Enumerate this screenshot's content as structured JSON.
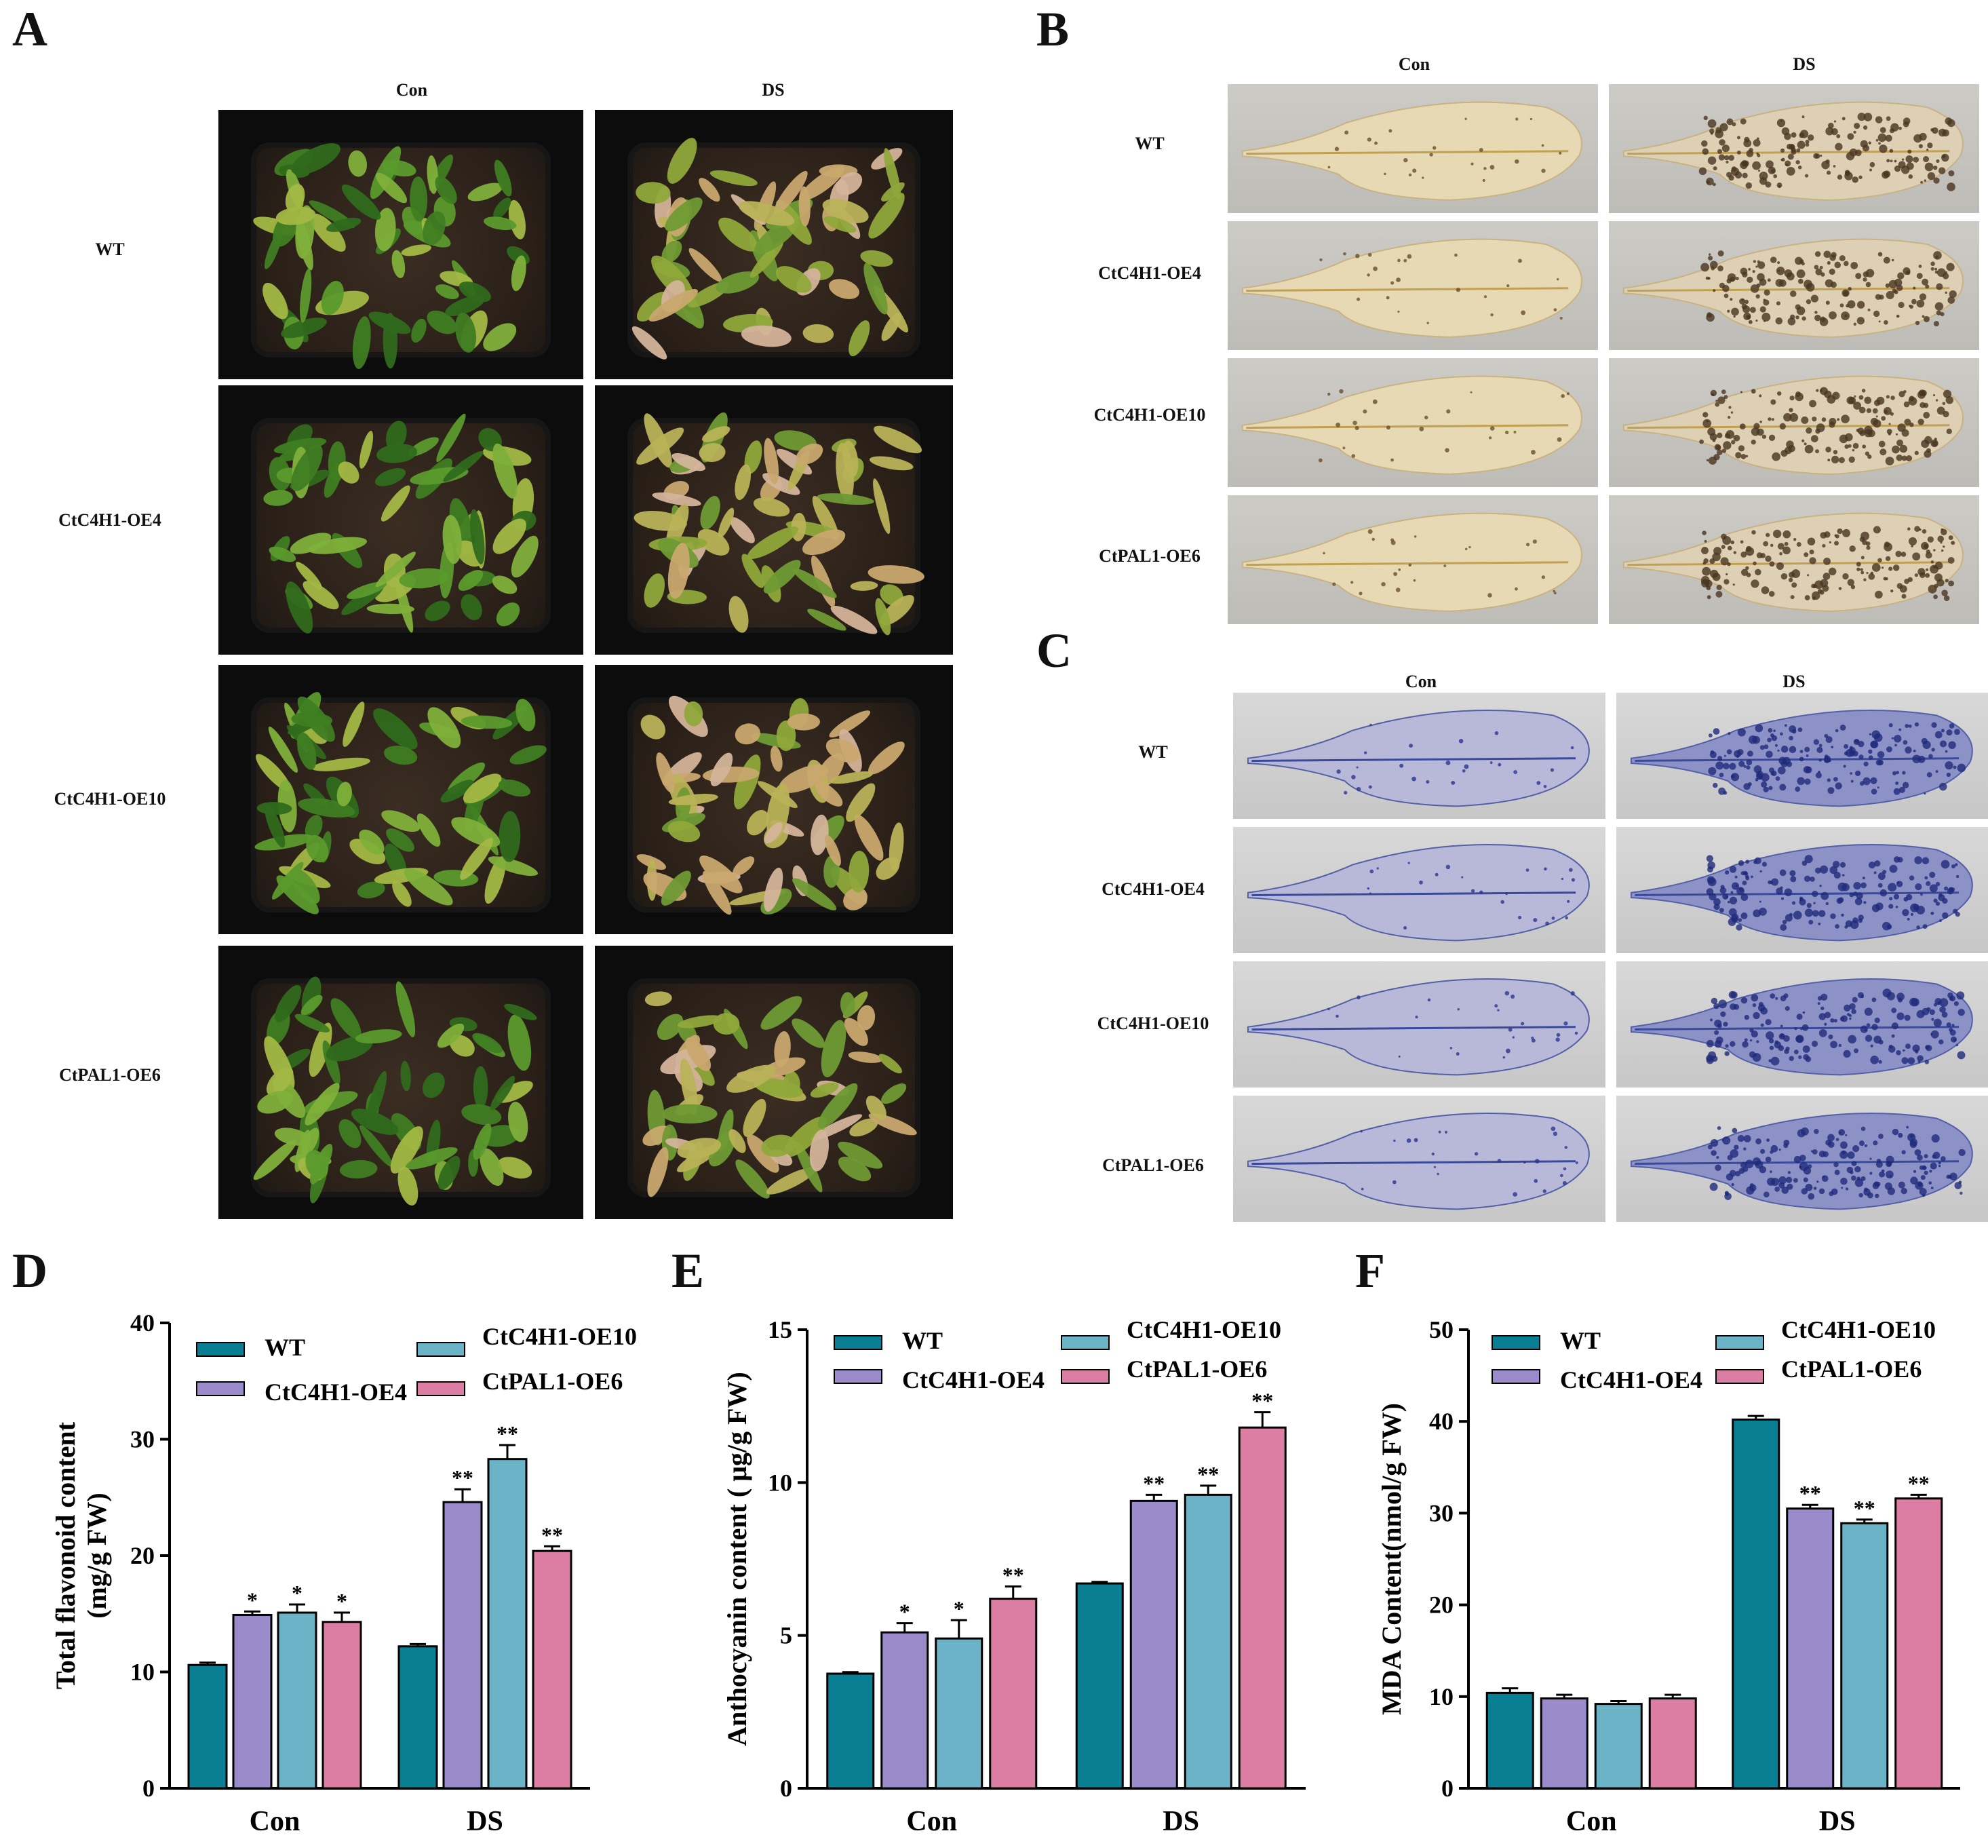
{
  "figure": {
    "panels": {
      "A": {
        "letter": "A",
        "columns": [
          "Con",
          "DS"
        ],
        "rows": [
          "WT",
          "CtC4H1-OE4",
          "CtC4H1-OE10",
          "CtPAL1-OE6"
        ]
      },
      "B": {
        "letter": "B",
        "columns": [
          "Con",
          "DS"
        ],
        "rows": [
          "WT",
          "CtC4H1-OE4",
          "CtC4H1-OE10",
          "CtPAL1-OE6"
        ]
      },
      "C": {
        "letter": "C",
        "columns": [
          "Con",
          "DS"
        ],
        "rows": [
          "WT",
          "CtC4H1-OE4",
          "CtC4H1-OE10",
          "CtPAL1-OE6"
        ]
      }
    },
    "colors": {
      "WT": "#0a7e93",
      "CtC4H1-OE4": "#9b8bcb",
      "CtC4H1-OE10": "#6bb3c6",
      "CtPAL1-OE6": "#dc7ea4",
      "nbt_stain": "#2a3590",
      "dab_stain": "#7a5a3c"
    }
  },
  "chart_data": [
    {
      "panel": "D",
      "type": "bar",
      "ylabel_line1": "Total flavonoid content",
      "ylabel_line2": "(mg/g FW)",
      "categories": [
        "Con",
        "DS"
      ],
      "ylim": [
        0,
        40
      ],
      "yticks": [
        0,
        10,
        20,
        30,
        40
      ],
      "series": [
        {
          "name": "WT",
          "values": [
            10.6,
            12.2
          ],
          "errors": [
            0.2,
            0.2
          ],
          "sig": [
            "",
            ""
          ]
        },
        {
          "name": "CtC4H1-OE4",
          "values": [
            14.9,
            24.6
          ],
          "errors": [
            0.3,
            1.1
          ],
          "sig": [
            "*",
            "**"
          ]
        },
        {
          "name": "CtC4H1-OE10",
          "values": [
            15.1,
            28.3
          ],
          "errors": [
            0.7,
            1.2
          ],
          "sig": [
            "*",
            "**"
          ]
        },
        {
          "name": "CtPAL1-OE6",
          "values": [
            14.3,
            20.4
          ],
          "errors": [
            0.8,
            0.4
          ],
          "sig": [
            "*",
            "**"
          ]
        }
      ]
    },
    {
      "panel": "E",
      "type": "bar",
      "ylabel_line1": "Anthocyanin content ( μg/g FW)",
      "categories": [
        "Con",
        "DS"
      ],
      "ylim": [
        0,
        15
      ],
      "yticks": [
        0,
        5,
        10,
        15
      ],
      "series": [
        {
          "name": "WT",
          "values": [
            3.75,
            6.7
          ],
          "errors": [
            0.05,
            0.05
          ],
          "sig": [
            "",
            ""
          ]
        },
        {
          "name": "CtC4H1-OE4",
          "values": [
            5.1,
            9.4
          ],
          "errors": [
            0.3,
            0.2
          ],
          "sig": [
            "*",
            "**"
          ]
        },
        {
          "name": "CtC4H1-OE10",
          "values": [
            4.9,
            9.6
          ],
          "errors": [
            0.6,
            0.3
          ],
          "sig": [
            "*",
            "**"
          ]
        },
        {
          "name": "CtPAL1-OE6",
          "values": [
            6.2,
            11.8
          ],
          "errors": [
            0.4,
            0.5
          ],
          "sig": [
            "**",
            "**"
          ]
        }
      ]
    },
    {
      "panel": "F",
      "type": "bar",
      "ylabel_line1": "MDA Content(nmol/g FW)",
      "categories": [
        "Con",
        "DS"
      ],
      "ylim": [
        0,
        50
      ],
      "yticks": [
        0,
        10,
        20,
        30,
        40,
        50
      ],
      "series": [
        {
          "name": "WT",
          "values": [
            10.4,
            40.2
          ],
          "errors": [
            0.5,
            0.4
          ],
          "sig": [
            "",
            ""
          ]
        },
        {
          "name": "CtC4H1-OE4",
          "values": [
            9.8,
            30.5
          ],
          "errors": [
            0.4,
            0.4
          ],
          "sig": [
            "",
            "**"
          ]
        },
        {
          "name": "CtC4H1-OE10",
          "values": [
            9.2,
            28.9
          ],
          "errors": [
            0.3,
            0.4
          ],
          "sig": [
            "",
            "**"
          ]
        },
        {
          "name": "CtPAL1-OE6",
          "values": [
            9.8,
            31.6
          ],
          "errors": [
            0.4,
            0.4
          ],
          "sig": [
            "",
            "**"
          ]
        }
      ]
    }
  ]
}
